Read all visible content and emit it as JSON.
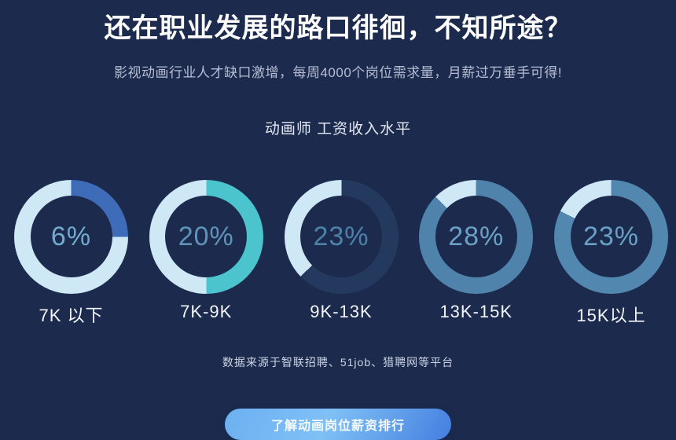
{
  "page": {
    "title": "还在职业发展的路口徘徊，不知所途？",
    "subtitle": "影视动画行业人才缺口激增，每周4000个岗位需求量，月薪过万垂手可得!",
    "chart_title": "动画师 工资收入水平",
    "source_note": "数据来源于智联招聘、51job、猎聘网等平台",
    "cta_label": "了解动画岗位薪资排行"
  },
  "colors": {
    "background": "#1c2b4d",
    "title_text": "#ffffff",
    "subtitle_text": "#b6bdd4",
    "label_text": "#f2f4f8",
    "source_text": "#ccd3e4",
    "ring_base_light": "#cfe8f6",
    "button_gradient_start": "#7fc0f6",
    "button_gradient_end": "#447fe0"
  },
  "chart_data": {
    "type": "pie",
    "variant": "donut-multiples",
    "title": "动画师 工资收入水平",
    "categories": [
      "7K 以下",
      "7K-9K",
      "9K-13K",
      "13K-15K",
      "15K以上"
    ],
    "values": [
      6,
      20,
      23,
      28,
      23
    ],
    "unit": "%",
    "legend_position": "below-each-donut",
    "donuts": [
      {
        "label": "7K 以下",
        "value": 6,
        "value_label": "6%",
        "accent_color": "#3e6cb8",
        "accent_sweep_deg": 90,
        "base_color": "#cfe8f6",
        "value_color": "#72abcd"
      },
      {
        "label": "7K-9K",
        "value": 20,
        "value_label": "20%",
        "accent_color": "#4cc4ce",
        "accent_sweep_deg": 180,
        "base_color": "#cfe8f6",
        "value_color": "#5f93b8"
      },
      {
        "label": "9K-13K",
        "value": 23,
        "value_label": "23%",
        "accent_color": "#233a5e",
        "accent_sweep_deg": 226,
        "base_color": "#cfe8f6",
        "value_color": "#4d81a8"
      },
      {
        "label": "13K-15K",
        "value": 28,
        "value_label": "28%",
        "accent_color": "#4f83ac",
        "accent_sweep_deg": 315,
        "base_color": "#cfe8f6",
        "value_color": "#6aa0c4"
      },
      {
        "label": "15K以上",
        "value": 23,
        "value_label": "23%",
        "accent_color": "#5287af",
        "accent_sweep_deg": 297,
        "base_color": "#cfe8f6",
        "value_color": "#6aa0c4"
      }
    ]
  }
}
